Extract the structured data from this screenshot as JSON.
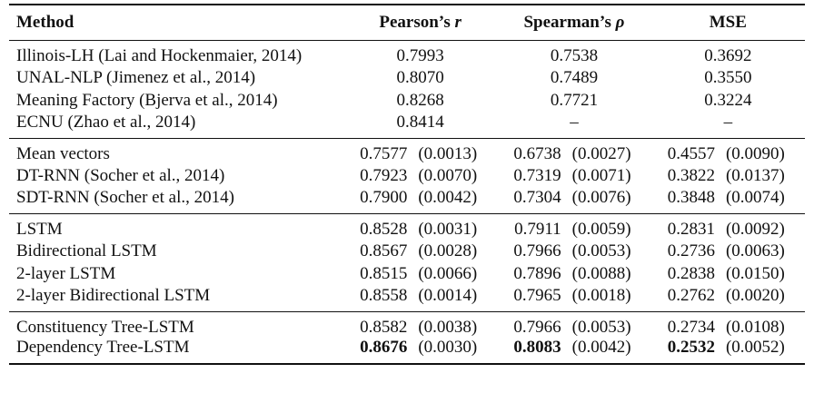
{
  "header": {
    "method": "Method",
    "pearson": "Pearson’s ",
    "pearson_sym": "r",
    "spearman": "Spearman’s ",
    "spearman_sym": "ρ",
    "mse": "MSE"
  },
  "groups": [
    {
      "rows": [
        {
          "method": "Illinois-LH (Lai and Hockenmaier, 2014)",
          "pearson": "0.7993",
          "spearman": "0.7538",
          "mse": "0.3692"
        },
        {
          "method": "UNAL-NLP (Jimenez et al., 2014)",
          "pearson": "0.8070",
          "spearman": "0.7489",
          "mse": "0.3550"
        },
        {
          "method": "Meaning Factory (Bjerva et al., 2014)",
          "pearson": "0.8268",
          "spearman": "0.7721",
          "mse": "0.3224"
        },
        {
          "method": "ECNU (Zhao et al., 2014)",
          "pearson": "0.8414",
          "spearman": "–",
          "mse": "–"
        }
      ]
    },
    {
      "rows": [
        {
          "method": "Mean vectors",
          "pearson": "0.7577",
          "pearson_sd": "(0.0013)",
          "spearman": "0.6738",
          "spearman_sd": "(0.0027)",
          "mse": "0.4557",
          "mse_sd": "(0.0090)"
        },
        {
          "method": "DT-RNN (Socher et al., 2014)",
          "pearson": "0.7923",
          "pearson_sd": "(0.0070)",
          "spearman": "0.7319",
          "spearman_sd": "(0.0071)",
          "mse": "0.3822",
          "mse_sd": "(0.0137)"
        },
        {
          "method": "SDT-RNN (Socher et al., 2014)",
          "pearson": "0.7900",
          "pearson_sd": "(0.0042)",
          "spearman": "0.7304",
          "spearman_sd": "(0.0076)",
          "mse": "0.3848",
          "mse_sd": "(0.0074)"
        }
      ]
    },
    {
      "rows": [
        {
          "method": "LSTM",
          "pearson": "0.8528",
          "pearson_sd": "(0.0031)",
          "spearman": "0.7911",
          "spearman_sd": "(0.0059)",
          "mse": "0.2831",
          "mse_sd": "(0.0092)"
        },
        {
          "method": "Bidirectional LSTM",
          "pearson": "0.8567",
          "pearson_sd": "(0.0028)",
          "spearman": "0.7966",
          "spearman_sd": "(0.0053)",
          "mse": "0.2736",
          "mse_sd": "(0.0063)"
        },
        {
          "method": "2-layer LSTM",
          "pearson": "0.8515",
          "pearson_sd": "(0.0066)",
          "spearman": "0.7896",
          "spearman_sd": "(0.0088)",
          "mse": "0.2838",
          "mse_sd": "(0.0150)"
        },
        {
          "method": "2-layer Bidirectional LSTM",
          "pearson": "0.8558",
          "pearson_sd": "(0.0014)",
          "spearman": "0.7965",
          "spearman_sd": "(0.0018)",
          "mse": "0.2762",
          "mse_sd": "(0.0020)"
        }
      ]
    },
    {
      "rows": [
        {
          "method": "Constituency Tree-LSTM",
          "pearson": "0.8582",
          "pearson_sd": "(0.0038)",
          "spearman": "0.7966",
          "spearman_sd": "(0.0053)",
          "mse": "0.2734",
          "mse_sd": "(0.0108)"
        },
        {
          "method": "Dependency Tree-LSTM",
          "pearson": "0.8676",
          "pearson_sd": "(0.0030)",
          "spearman": "0.8083",
          "spearman_sd": "(0.0042)",
          "mse": "0.2532",
          "mse_sd": "(0.0052)",
          "best": true
        }
      ]
    }
  ]
}
